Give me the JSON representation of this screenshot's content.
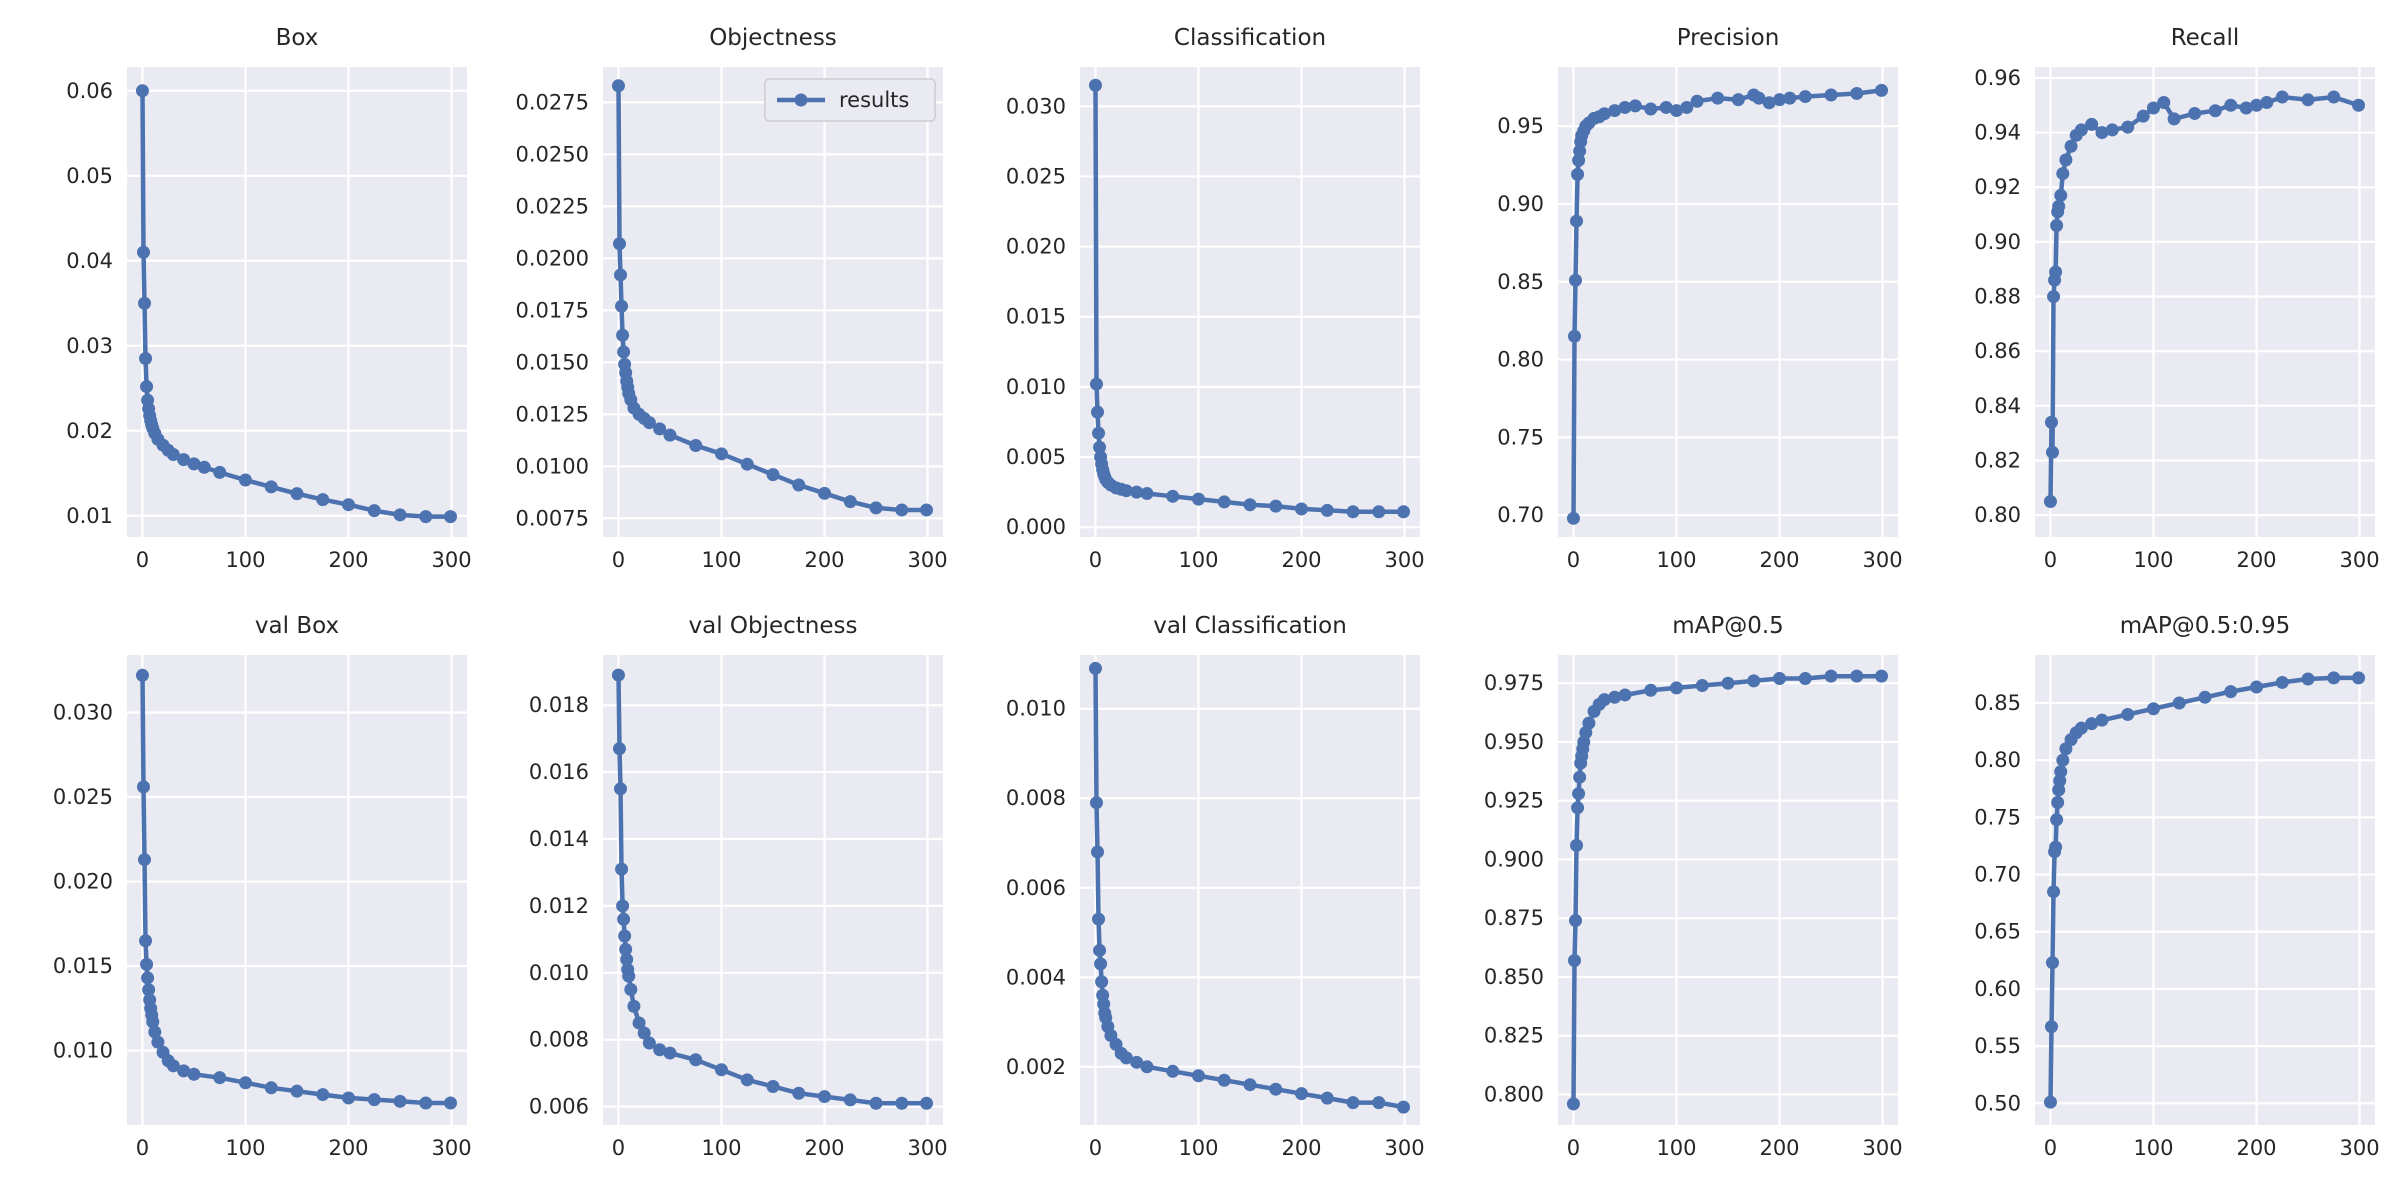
{
  "figure": {
    "background": "#ffffff",
    "plot_bg": "#eaeaf2",
    "grid_color": "#ffffff",
    "line_color": "#4c72b0"
  },
  "chart_data": [
    {
      "type": "line",
      "title": "Box",
      "xlabel": "",
      "ylabel": "",
      "xlim": [
        -15,
        315
      ],
      "ylim": [
        0.0075,
        0.0628
      ],
      "xticks": [
        0,
        100,
        200,
        300
      ],
      "yticks": [
        0.01,
        0.02,
        0.03,
        0.04,
        0.05,
        0.06
      ],
      "ytick_labels": [
        "0.01",
        "0.02",
        "0.03",
        "0.04",
        "0.05",
        "0.06"
      ],
      "legend": false,
      "series": [
        {
          "name": "results",
          "x": [
            0,
            1,
            2,
            3,
            4,
            5,
            6,
            7,
            8,
            9,
            10,
            12,
            15,
            20,
            25,
            30,
            40,
            50,
            60,
            75,
            100,
            125,
            150,
            175,
            200,
            225,
            250,
            275,
            299
          ],
          "y": [
            0.06,
            0.041,
            0.035,
            0.0285,
            0.0252,
            0.0236,
            0.0226,
            0.0218,
            0.0212,
            0.0207,
            0.0203,
            0.0197,
            0.019,
            0.0183,
            0.0177,
            0.0172,
            0.0166,
            0.0161,
            0.0157,
            0.0151,
            0.0142,
            0.0134,
            0.0126,
            0.0119,
            0.0113,
            0.0106,
            0.0101,
            0.0099,
            0.0099
          ]
        }
      ]
    },
    {
      "type": "line",
      "title": "Objectness",
      "xlabel": "",
      "ylabel": "",
      "xlim": [
        -15,
        315
      ],
      "ylim": [
        0.0066,
        0.0292
      ],
      "xticks": [
        0,
        100,
        200,
        300
      ],
      "yticks": [
        0.0075,
        0.01,
        0.0125,
        0.015,
        0.0175,
        0.02,
        0.0225,
        0.025,
        0.0275
      ],
      "ytick_labels": [
        "0.0075",
        "0.0100",
        "0.0125",
        "0.0150",
        "0.0175",
        "0.0200",
        "0.0225",
        "0.0250",
        "0.0275"
      ],
      "legend": true,
      "legend_position": "top-right",
      "series": [
        {
          "name": "results",
          "x": [
            0,
            1,
            2,
            3,
            4,
            5,
            6,
            7,
            8,
            9,
            10,
            12,
            15,
            20,
            25,
            30,
            40,
            50,
            75,
            100,
            125,
            150,
            175,
            200,
            225,
            250,
            275,
            299
          ],
          "y": [
            0.0283,
            0.0207,
            0.0192,
            0.0177,
            0.0163,
            0.0155,
            0.0149,
            0.0145,
            0.0141,
            0.0138,
            0.0135,
            0.0132,
            0.0128,
            0.0125,
            0.0123,
            0.0121,
            0.0118,
            0.0115,
            0.011,
            0.0106,
            0.0101,
            0.0096,
            0.0091,
            0.0087,
            0.0083,
            0.008,
            0.0079,
            0.0079
          ]
        }
      ]
    },
    {
      "type": "line",
      "title": "Classification",
      "xlabel": "",
      "ylabel": "",
      "xlim": [
        -15,
        315
      ],
      "ylim": [
        -0.0007,
        0.0328
      ],
      "xticks": [
        0,
        100,
        200,
        300
      ],
      "yticks": [
        0.0,
        0.005,
        0.01,
        0.015,
        0.02,
        0.025,
        0.03
      ],
      "ytick_labels": [
        "0.000",
        "0.005",
        "0.010",
        "0.015",
        "0.020",
        "0.025",
        "0.030"
      ],
      "legend": false,
      "series": [
        {
          "name": "results",
          "x": [
            0,
            1,
            2,
            3,
            4,
            5,
            6,
            7,
            8,
            9,
            10,
            12,
            15,
            20,
            25,
            30,
            40,
            50,
            75,
            100,
            125,
            150,
            175,
            200,
            225,
            250,
            275,
            299
          ],
          "y": [
            0.0315,
            0.0102,
            0.0082,
            0.0067,
            0.0057,
            0.005,
            0.0045,
            0.0041,
            0.0038,
            0.0036,
            0.0034,
            0.0032,
            0.003,
            0.0028,
            0.0027,
            0.0026,
            0.0025,
            0.0024,
            0.0022,
            0.002,
            0.0018,
            0.0016,
            0.0015,
            0.0013,
            0.0012,
            0.0011,
            0.0011,
            0.0011
          ]
        }
      ]
    },
    {
      "type": "line",
      "title": "Precision",
      "xlabel": "",
      "ylabel": "",
      "xlim": [
        -15,
        315
      ],
      "ylim": [
        0.686,
        0.988
      ],
      "xticks": [
        0,
        100,
        200,
        300
      ],
      "yticks": [
        0.7,
        0.75,
        0.8,
        0.85,
        0.9,
        0.95
      ],
      "ytick_labels": [
        "0.70",
        "0.75",
        "0.80",
        "0.85",
        "0.90",
        "0.95"
      ],
      "legend": false,
      "series": [
        {
          "name": "results",
          "x": [
            0,
            1,
            2,
            3,
            4,
            5,
            6,
            7,
            8,
            10,
            12,
            15,
            20,
            25,
            30,
            40,
            50,
            60,
            75,
            90,
            100,
            110,
            120,
            140,
            160,
            175,
            180,
            190,
            200,
            210,
            225,
            250,
            275,
            299
          ],
          "y": [
            0.698,
            0.815,
            0.851,
            0.889,
            0.919,
            0.928,
            0.934,
            0.94,
            0.944,
            0.947,
            0.95,
            0.952,
            0.955,
            0.956,
            0.958,
            0.96,
            0.962,
            0.963,
            0.961,
            0.962,
            0.96,
            0.962,
            0.966,
            0.968,
            0.967,
            0.97,
            0.968,
            0.965,
            0.967,
            0.968,
            0.969,
            0.97,
            0.971,
            0.973
          ]
        }
      ]
    },
    {
      "type": "line",
      "title": "Recall",
      "xlabel": "",
      "ylabel": "",
      "xlim": [
        -15,
        315
      ],
      "ylim": [
        0.792,
        0.964
      ],
      "xticks": [
        0,
        100,
        200,
        300
      ],
      "yticks": [
        0.8,
        0.82,
        0.84,
        0.86,
        0.88,
        0.9,
        0.92,
        0.94,
        0.96
      ],
      "ytick_labels": [
        "0.80",
        "0.82",
        "0.84",
        "0.86",
        "0.88",
        "0.90",
        "0.92",
        "0.94",
        "0.96"
      ],
      "legend": false,
      "series": [
        {
          "name": "results",
          "x": [
            0,
            1,
            2,
            3,
            4,
            5,
            6,
            7,
            8,
            10,
            12,
            15,
            20,
            25,
            30,
            40,
            50,
            60,
            75,
            90,
            100,
            110,
            120,
            140,
            160,
            175,
            190,
            200,
            210,
            225,
            250,
            275,
            299
          ],
          "y": [
            0.805,
            0.834,
            0.823,
            0.88,
            0.886,
            0.889,
            0.906,
            0.911,
            0.913,
            0.917,
            0.925,
            0.93,
            0.935,
            0.939,
            0.941,
            0.943,
            0.94,
            0.941,
            0.942,
            0.946,
            0.949,
            0.951,
            0.945,
            0.947,
            0.948,
            0.95,
            0.949,
            0.95,
            0.951,
            0.953,
            0.952,
            0.953,
            0.95
          ]
        }
      ]
    },
    {
      "type": "line",
      "title": "val Box",
      "xlabel": "",
      "ylabel": "",
      "xlim": [
        -15,
        315
      ],
      "ylim": [
        0.0056,
        0.0334
      ],
      "xticks": [
        0,
        100,
        200,
        300
      ],
      "yticks": [
        0.01,
        0.015,
        0.02,
        0.025,
        0.03
      ],
      "ytick_labels": [
        "0.010",
        "0.015",
        "0.020",
        "0.025",
        "0.030"
      ],
      "legend": false,
      "series": [
        {
          "name": "results",
          "x": [
            0,
            1,
            2,
            3,
            4,
            5,
            6,
            7,
            8,
            9,
            10,
            12,
            15,
            20,
            25,
            30,
            40,
            50,
            75,
            100,
            125,
            150,
            175,
            200,
            225,
            250,
            275,
            299
          ],
          "y": [
            0.0322,
            0.0256,
            0.0213,
            0.0165,
            0.0151,
            0.0143,
            0.0136,
            0.013,
            0.0125,
            0.0121,
            0.0117,
            0.0111,
            0.0105,
            0.0099,
            0.0094,
            0.0091,
            0.0088,
            0.0086,
            0.0084,
            0.0081,
            0.0078,
            0.0076,
            0.0074,
            0.0072,
            0.0071,
            0.007,
            0.0069,
            0.0069
          ]
        }
      ]
    },
    {
      "type": "line",
      "title": "val Objectness",
      "xlabel": "",
      "ylabel": "",
      "xlim": [
        -15,
        315
      ],
      "ylim": [
        0.00545,
        0.0195
      ],
      "xticks": [
        0,
        100,
        200,
        300
      ],
      "yticks": [
        0.006,
        0.008,
        0.01,
        0.012,
        0.014,
        0.016,
        0.018
      ],
      "ytick_labels": [
        "0.006",
        "0.008",
        "0.010",
        "0.012",
        "0.014",
        "0.016",
        "0.018"
      ],
      "legend": false,
      "series": [
        {
          "name": "results",
          "x": [
            0,
            1,
            2,
            3,
            4,
            5,
            6,
            7,
            8,
            9,
            10,
            12,
            15,
            20,
            25,
            30,
            40,
            50,
            75,
            100,
            125,
            150,
            175,
            200,
            225,
            250,
            275,
            299
          ],
          "y": [
            0.0189,
            0.0167,
            0.0155,
            0.0131,
            0.012,
            0.0116,
            0.0111,
            0.0107,
            0.0104,
            0.0101,
            0.0099,
            0.0095,
            0.009,
            0.0085,
            0.0082,
            0.0079,
            0.0077,
            0.0076,
            0.0074,
            0.0071,
            0.0068,
            0.0066,
            0.0064,
            0.0063,
            0.0062,
            0.0061,
            0.0061,
            0.0061
          ]
        }
      ]
    },
    {
      "type": "line",
      "title": "val Classification",
      "xlabel": "",
      "ylabel": "",
      "xlim": [
        -15,
        315
      ],
      "ylim": [
        0.0007,
        0.0112
      ],
      "xticks": [
        0,
        100,
        200,
        300
      ],
      "yticks": [
        0.002,
        0.004,
        0.006,
        0.008,
        0.01
      ],
      "ytick_labels": [
        "0.002",
        "0.004",
        "0.006",
        "0.008",
        "0.010"
      ],
      "legend": false,
      "series": [
        {
          "name": "results",
          "x": [
            0,
            1,
            2,
            3,
            4,
            5,
            6,
            7,
            8,
            9,
            10,
            12,
            15,
            20,
            25,
            30,
            40,
            50,
            75,
            100,
            125,
            150,
            175,
            200,
            225,
            250,
            275,
            299
          ],
          "y": [
            0.0109,
            0.0079,
            0.0068,
            0.0053,
            0.0046,
            0.0043,
            0.0039,
            0.0036,
            0.0034,
            0.0032,
            0.0031,
            0.0029,
            0.0027,
            0.0025,
            0.0023,
            0.0022,
            0.0021,
            0.002,
            0.0019,
            0.0018,
            0.0017,
            0.0016,
            0.0015,
            0.0014,
            0.0013,
            0.0012,
            0.0012,
            0.0011
          ]
        }
      ]
    },
    {
      "type": "line",
      "title": "mAP@0.5",
      "xlabel": "",
      "ylabel": "",
      "xlim": [
        -15,
        315
      ],
      "ylim": [
        0.787,
        0.987
      ],
      "xticks": [
        0,
        100,
        200,
        300
      ],
      "yticks": [
        0.8,
        0.825,
        0.85,
        0.875,
        0.9,
        0.925,
        0.95,
        0.975
      ],
      "ytick_labels": [
        "0.800",
        "0.825",
        "0.850",
        "0.875",
        "0.900",
        "0.925",
        "0.950",
        "0.975"
      ],
      "legend": false,
      "series": [
        {
          "name": "results",
          "x": [
            0,
            1,
            2,
            3,
            4,
            5,
            6,
            7,
            8,
            9,
            10,
            12,
            15,
            20,
            25,
            30,
            40,
            50,
            75,
            100,
            125,
            150,
            175,
            200,
            225,
            250,
            275,
            299
          ],
          "y": [
            0.796,
            0.857,
            0.874,
            0.906,
            0.922,
            0.928,
            0.935,
            0.941,
            0.944,
            0.947,
            0.95,
            0.954,
            0.958,
            0.963,
            0.966,
            0.968,
            0.969,
            0.97,
            0.972,
            0.973,
            0.974,
            0.975,
            0.976,
            0.977,
            0.977,
            0.978,
            0.978,
            0.978
          ]
        }
      ]
    },
    {
      "type": "line",
      "title": "mAP@0.5:0.95",
      "xlabel": "",
      "ylabel": "",
      "xlim": [
        -15,
        315
      ],
      "ylim": [
        0.481,
        0.892
      ],
      "xticks": [
        0,
        100,
        200,
        300
      ],
      "yticks": [
        0.5,
        0.55,
        0.6,
        0.65,
        0.7,
        0.75,
        0.8,
        0.85
      ],
      "ytick_labels": [
        "0.50",
        "0.55",
        "0.60",
        "0.65",
        "0.70",
        "0.75",
        "0.80",
        "0.85"
      ],
      "legend": false,
      "series": [
        {
          "name": "results",
          "x": [
            0,
            1,
            2,
            3,
            4,
            5,
            6,
            7,
            8,
            9,
            10,
            12,
            15,
            20,
            25,
            30,
            40,
            50,
            75,
            100,
            125,
            150,
            175,
            200,
            225,
            250,
            275,
            299
          ],
          "y": [
            0.501,
            0.567,
            0.623,
            0.685,
            0.72,
            0.724,
            0.748,
            0.763,
            0.774,
            0.782,
            0.79,
            0.8,
            0.81,
            0.818,
            0.824,
            0.828,
            0.832,
            0.835,
            0.84,
            0.845,
            0.85,
            0.855,
            0.86,
            0.864,
            0.868,
            0.871,
            0.872,
            0.872
          ]
        }
      ]
    }
  ]
}
